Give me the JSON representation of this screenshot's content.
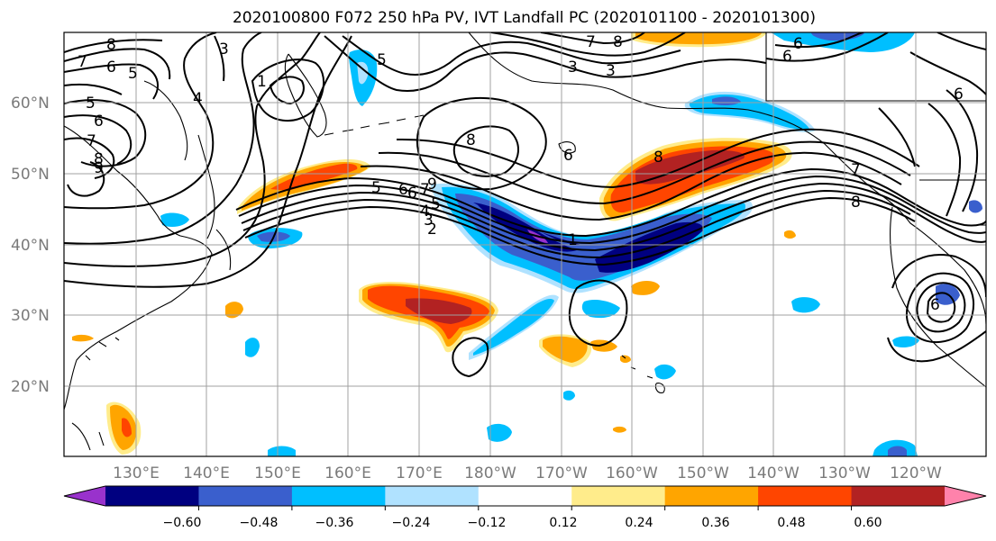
{
  "title": "2020100800 F072 250 hPa PV, IVT Landfall PC (2020101100 - 2020101300)",
  "lat_labels": [
    "60°N",
    "50°N",
    "40°N",
    "30°N",
    "20°N"
  ],
  "lon_labels": [
    "130°E",
    "140°E",
    "150°E",
    "160°E",
    "170°E",
    "180°W",
    "170°W",
    "160°W",
    "150°W",
    "140°W",
    "130°W",
    "120°W"
  ],
  "colorbar": {
    "ticks": [
      "−0.60",
      "−0.48",
      "−0.36",
      "−0.24",
      "−0.12",
      "0.12",
      "0.24",
      "0.36",
      "0.48",
      "0.60"
    ],
    "colors": [
      "#9932cc",
      "#000080",
      "#3a5fcd",
      "#00bfff",
      "#b0e2ff",
      "#ffffff",
      "#ffec8b",
      "#ffa500",
      "#ff4500",
      "#b22222",
      "#ff82ab"
    ]
  },
  "contour_labels": [
    "8",
    "7",
    "6",
    "5",
    "5",
    "6",
    "7",
    "8",
    "9",
    "3",
    "1",
    "4",
    "5",
    "6",
    "7",
    "8",
    "9",
    "6",
    "5",
    "4",
    "3",
    "2",
    "1",
    "8",
    "6",
    "7",
    "8",
    "6",
    "6",
    "5",
    "3",
    "3",
    "6",
    "6",
    "7",
    "8"
  ]
}
